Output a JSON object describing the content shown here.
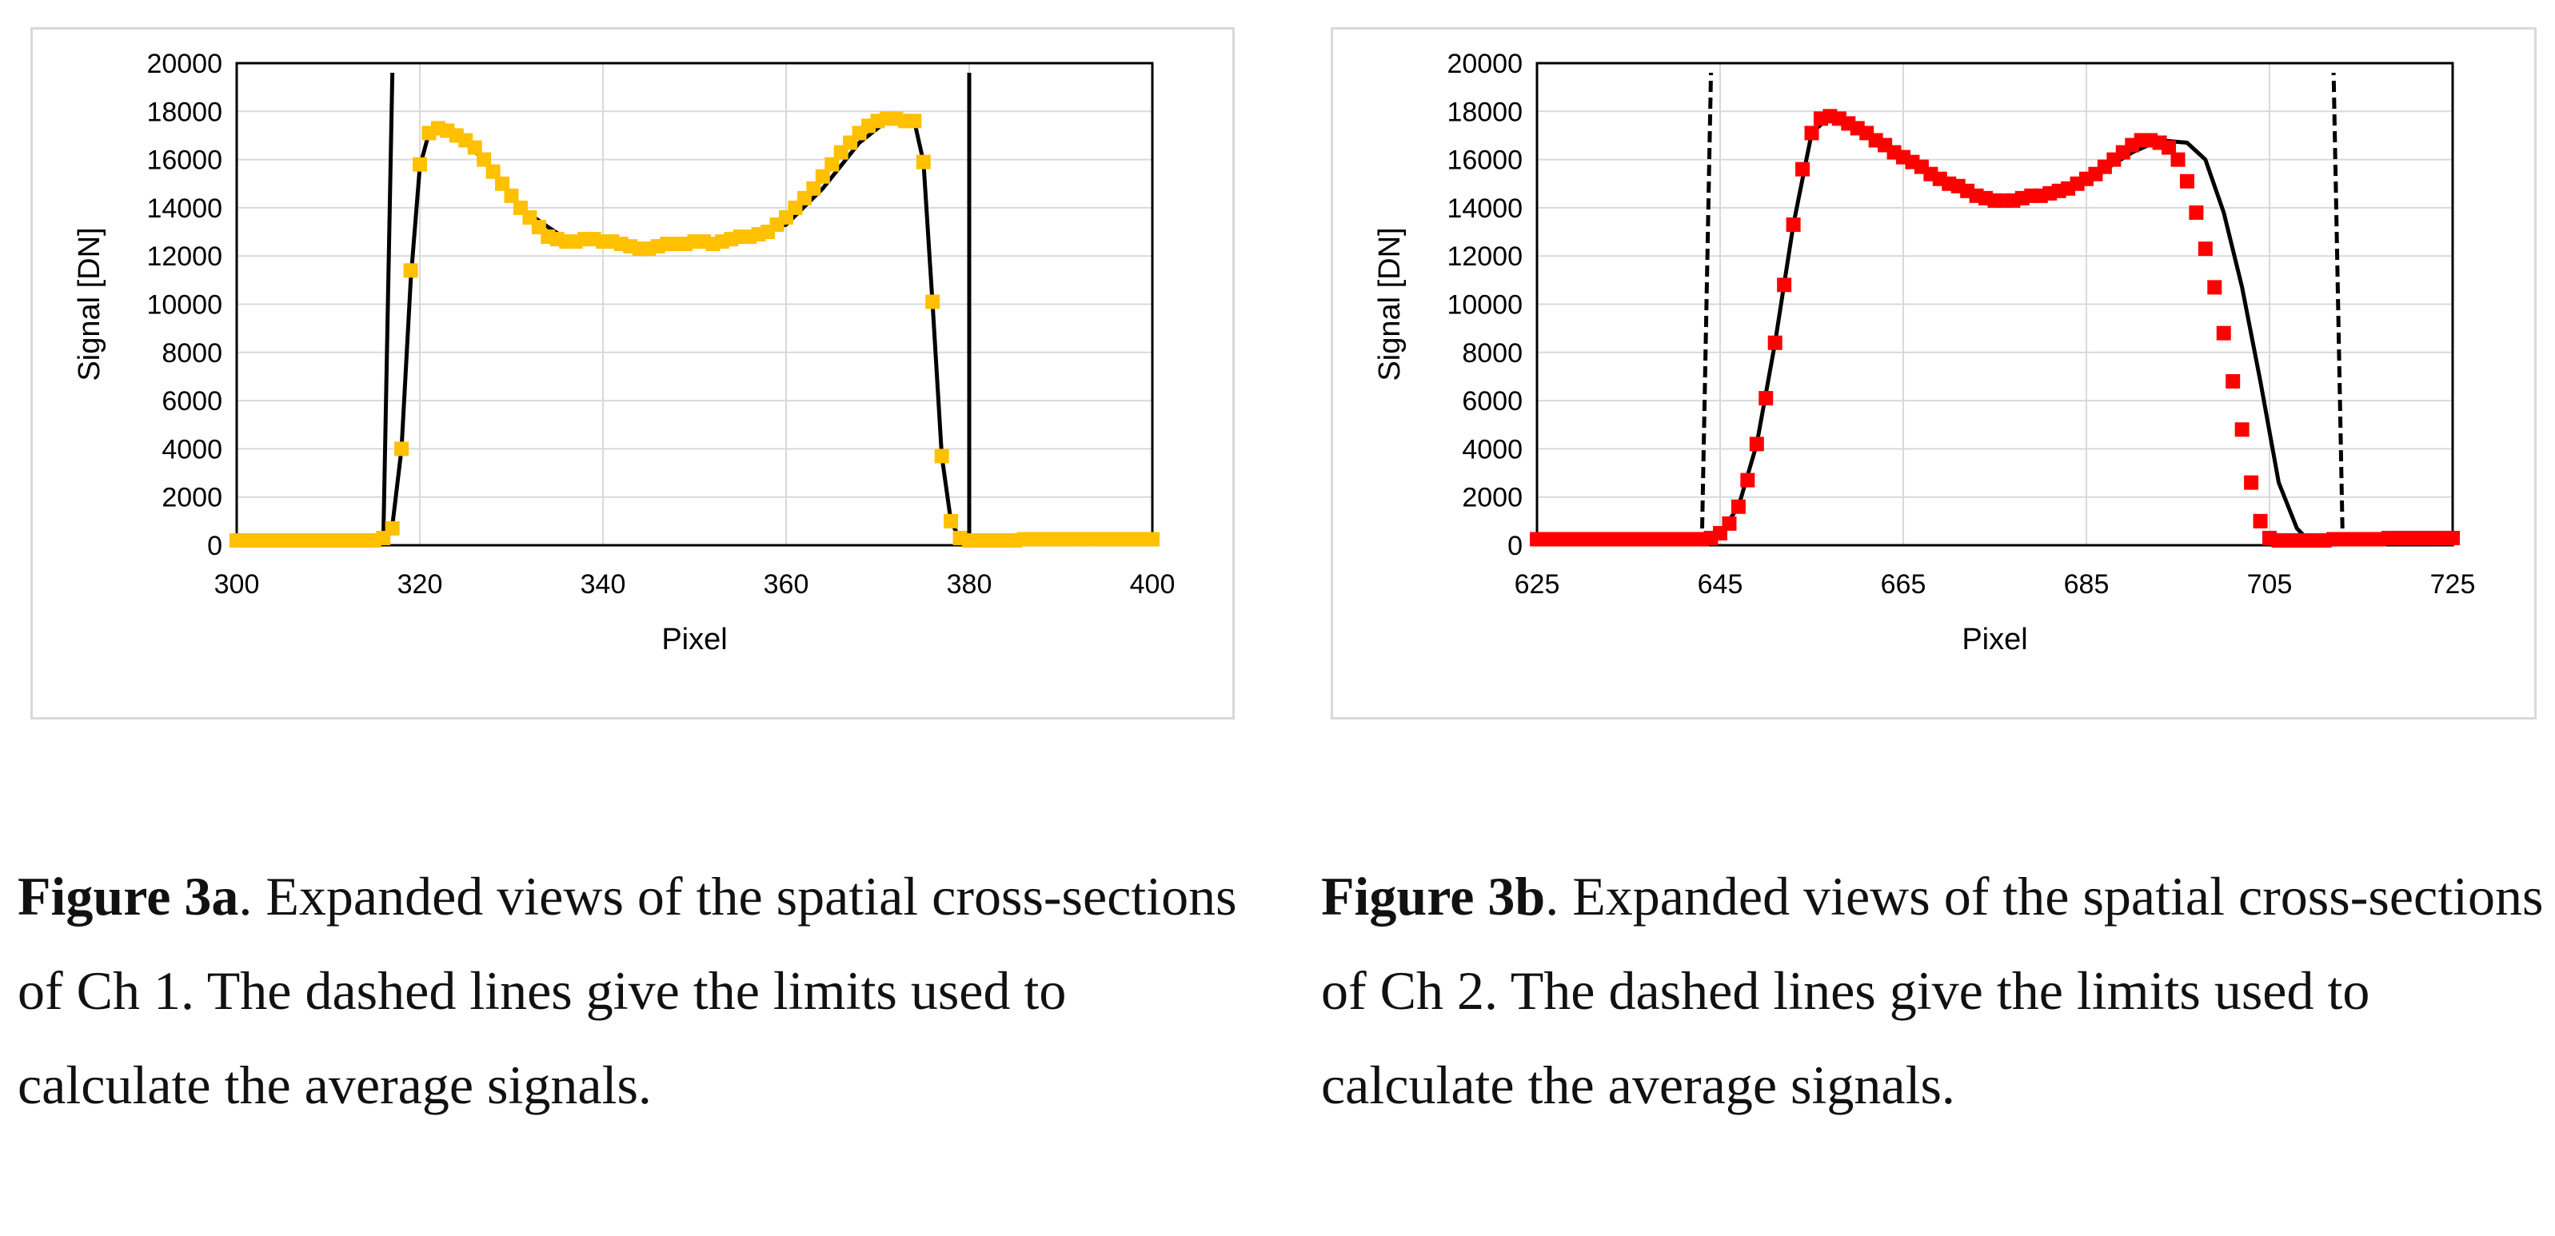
{
  "chart_data": [
    {
      "type": "scatter",
      "xlabel": "Pixel",
      "ylabel": "Signal [DN]",
      "xlim": [
        300,
        400
      ],
      "ylim": [
        0,
        20000
      ],
      "xticks": [
        300,
        320,
        340,
        360,
        380,
        400
      ],
      "yticks": [
        0,
        2000,
        4000,
        6000,
        8000,
        10000,
        12000,
        14000,
        16000,
        18000,
        20000
      ],
      "grid": true,
      "marker_color": "#FFC000",
      "series": [
        {
          "x": [
            300,
            301,
            302,
            303,
            304,
            305,
            306,
            307,
            308,
            309,
            310,
            311,
            312,
            313,
            314,
            315,
            316,
            317,
            318,
            319,
            320,
            321,
            322,
            323,
            324,
            325,
            326,
            327,
            328,
            329,
            330,
            331,
            332,
            333,
            334,
            335,
            336,
            337,
            338,
            339,
            340,
            341,
            342,
            343,
            344,
            345,
            346,
            347,
            348,
            349,
            350,
            351,
            352,
            353,
            354,
            355,
            356,
            357,
            358,
            359,
            360,
            361,
            362,
            363,
            364,
            365,
            366,
            367,
            368,
            369,
            370,
            371,
            372,
            373,
            374,
            375,
            376,
            377,
            378,
            379,
            380,
            381,
            382,
            383,
            384,
            385,
            386,
            387,
            388,
            389,
            390,
            391,
            392,
            393,
            394,
            395,
            396,
            397,
            398,
            399,
            400
          ],
          "y": [
            200,
            200,
            200,
            200,
            200,
            200,
            200,
            200,
            200,
            200,
            200,
            200,
            200,
            200,
            200,
            200,
            300,
            700,
            4000,
            11400,
            15800,
            17100,
            17300,
            17200,
            17000,
            16800,
            16500,
            16000,
            15500,
            15000,
            14500,
            14000,
            13600,
            13200,
            12800,
            12700,
            12600,
            12600,
            12700,
            12700,
            12600,
            12600,
            12500,
            12400,
            12300,
            12300,
            12400,
            12500,
            12500,
            12500,
            12600,
            12600,
            12500,
            12600,
            12700,
            12800,
            12800,
            12900,
            13000,
            13300,
            13600,
            14000,
            14400,
            14800,
            15300,
            15800,
            16300,
            16700,
            17100,
            17400,
            17600,
            17700,
            17700,
            17600,
            17600,
            15900,
            10100,
            3700,
            1000,
            300,
            200,
            200,
            200,
            200,
            200,
            200,
            250,
            250,
            250,
            250,
            250,
            250,
            250,
            250,
            250,
            250,
            250,
            250,
            250,
            250,
            250
          ]
        }
      ],
      "fit_line": {
        "x": [
          316,
          317,
          318,
          319,
          320,
          321,
          322,
          323,
          325,
          328,
          331,
          334,
          336,
          340,
          345,
          350,
          355,
          360,
          364,
          368,
          371,
          373,
          374,
          375,
          376,
          377,
          378,
          379,
          380
        ],
        "y": [
          0,
          800,
          4000,
          11000,
          15700,
          17100,
          17300,
          17200,
          16800,
          15500,
          14000,
          13200,
          12700,
          12600,
          12300,
          12500,
          12700,
          13300,
          14800,
          16700,
          17600,
          17700,
          17600,
          15900,
          10000,
          3700,
          1000,
          250,
          0
        ]
      },
      "limit_lines": [
        {
          "x_bottom": 316,
          "x_top": 317
        },
        {
          "x_bottom": 380,
          "x_top": 380
        }
      ]
    },
    {
      "type": "scatter",
      "xlabel": "Pixel",
      "ylabel": "Signal [DN]",
      "xlim": [
        625,
        725
      ],
      "ylim": [
        0,
        20000
      ],
      "xticks": [
        625,
        645,
        665,
        685,
        705,
        725
      ],
      "yticks": [
        0,
        2000,
        4000,
        6000,
        8000,
        10000,
        12000,
        14000,
        16000,
        18000,
        20000
      ],
      "grid": true,
      "marker_color": "#FF0000",
      "series": [
        {
          "x": [
            625,
            626,
            627,
            628,
            629,
            630,
            631,
            632,
            633,
            634,
            635,
            636,
            637,
            638,
            639,
            640,
            641,
            642,
            643,
            644,
            645,
            646,
            647,
            648,
            649,
            650,
            651,
            652,
            653,
            654,
            655,
            656,
            657,
            658,
            659,
            660,
            661,
            662,
            663,
            664,
            665,
            666,
            667,
            668,
            669,
            670,
            671,
            672,
            673,
            674,
            675,
            676,
            677,
            678,
            679,
            680,
            681,
            682,
            683,
            684,
            685,
            686,
            687,
            688,
            689,
            690,
            691,
            692,
            693,
            694,
            695,
            696,
            697,
            698,
            699,
            700,
            701,
            702,
            703,
            704,
            705,
            706,
            707,
            708,
            709,
            710,
            711,
            712,
            713,
            714,
            715,
            716,
            717,
            718,
            719,
            720,
            721,
            722,
            723,
            724,
            725
          ],
          "y": [
            250,
            250,
            250,
            250,
            250,
            250,
            250,
            250,
            250,
            250,
            250,
            250,
            250,
            250,
            250,
            250,
            250,
            250,
            250,
            300,
            500,
            900,
            1600,
            2700,
            4200,
            6100,
            8400,
            10800,
            13300,
            15600,
            17100,
            17700,
            17800,
            17700,
            17500,
            17300,
            17100,
            16800,
            16600,
            16300,
            16100,
            15900,
            15700,
            15400,
            15200,
            15000,
            14900,
            14700,
            14500,
            14400,
            14300,
            14300,
            14300,
            14400,
            14500,
            14500,
            14600,
            14700,
            14800,
            15000,
            15200,
            15400,
            15700,
            16000,
            16300,
            16600,
            16800,
            16800,
            16700,
            16500,
            16000,
            15100,
            13800,
            12300,
            10700,
            8800,
            6800,
            4800,
            2600,
            1000,
            300,
            200,
            200,
            200,
            200,
            200,
            200,
            250,
            250,
            250,
            250,
            250,
            250,
            300,
            300,
            300,
            300,
            300,
            300,
            300,
            300
          ]
        }
      ],
      "fit_line": {
        "x": [
          643,
          645,
          647,
          649,
          651,
          653,
          655,
          657,
          660,
          665,
          670,
          675,
          680,
          685,
          690,
          693,
          696,
          698,
          700,
          702,
          704,
          706,
          708,
          709,
          710,
          712
        ],
        "y": [
          200,
          500,
          1600,
          4200,
          8400,
          13300,
          17100,
          17800,
          17300,
          16100,
          15000,
          14300,
          14500,
          15100,
          16300,
          16800,
          16700,
          16000,
          13800,
          10700,
          6800,
          2600,
          700,
          300,
          200,
          200
        ]
      },
      "limit_lines": [
        {
          "x_bottom": 643,
          "x_top": 644,
          "dashed": true
        },
        {
          "x_bottom": 713,
          "x_top": 712,
          "dashed": true
        }
      ]
    }
  ],
  "captions": [
    {
      "label": "Figure 3a",
      "text": ". Expanded views of the spatial cross-sections of Ch 1. The dashed lines give the limits used to calculate the average signals."
    },
    {
      "label": "Figure 3b",
      "text": ". Expanded views of the spatial cross-sections of Ch 2. The dashed lines give the limits used to calculate the average signals."
    }
  ]
}
